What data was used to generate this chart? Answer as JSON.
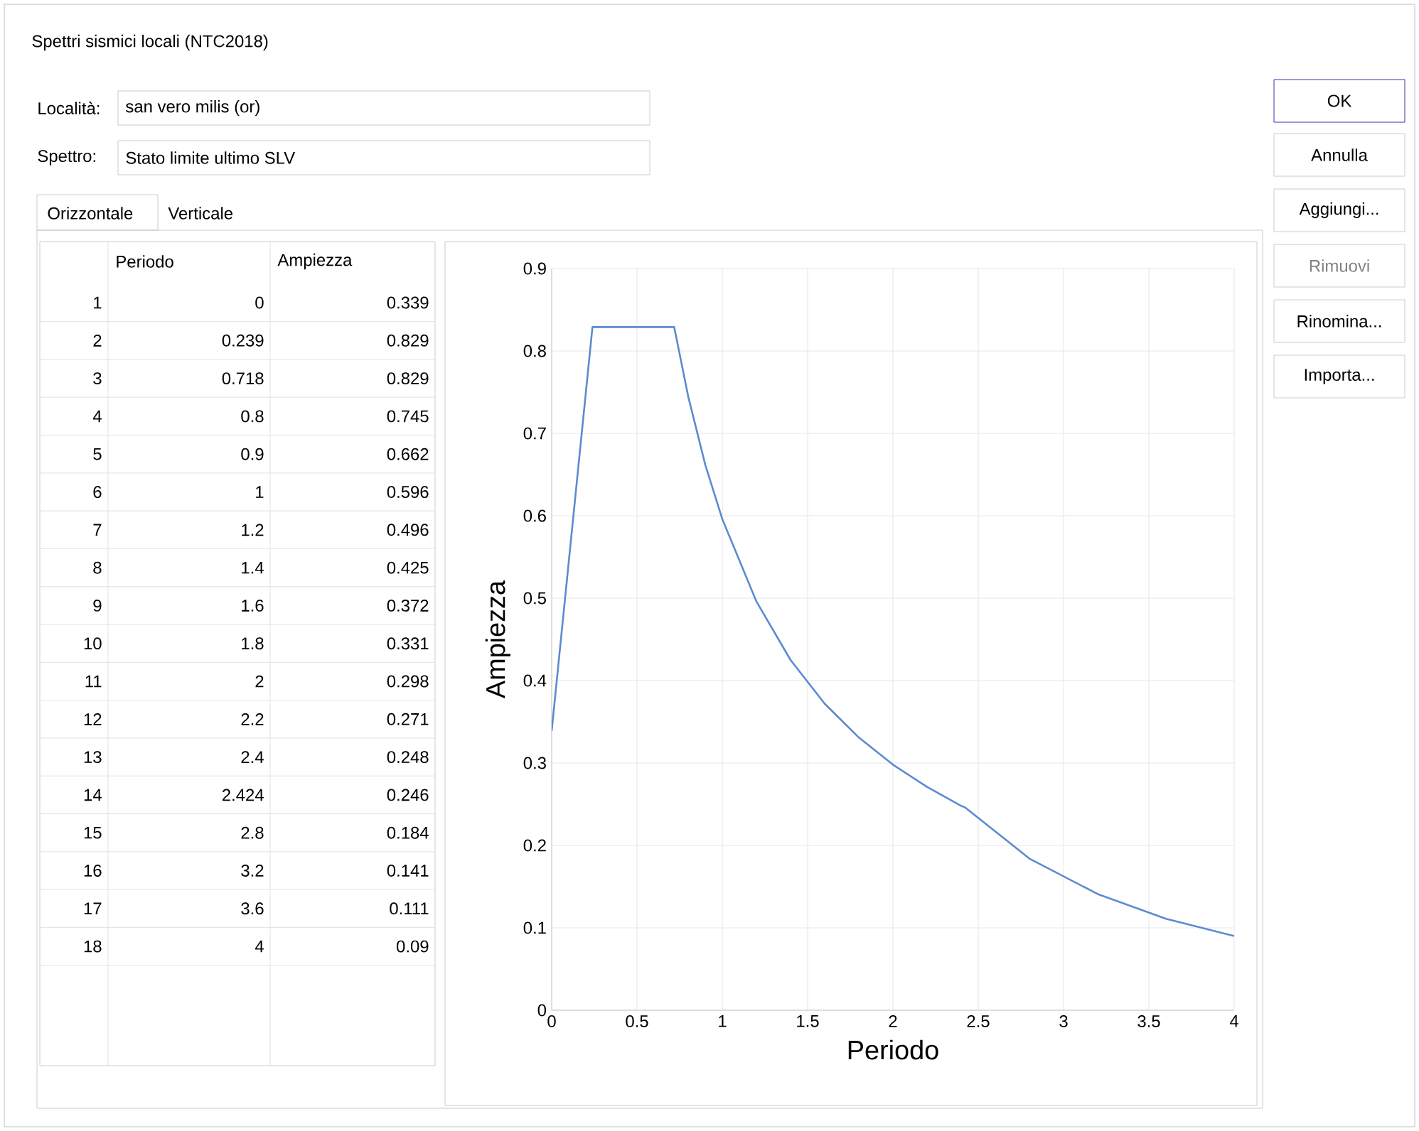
{
  "chart_data": {
    "type": "line",
    "title": "Spettri sismici locali (NTC2018)",
    "xlabel": "Periodo",
    "ylabel": "Ampiezza",
    "x": [
      0,
      0.239,
      0.718,
      0.8,
      0.9,
      1,
      1.2,
      1.4,
      1.6,
      1.8,
      2,
      2.2,
      2.4,
      2.424,
      2.8,
      3.2,
      3.6,
      4
    ],
    "series": [
      {
        "color": "#5b8bd0",
        "values": [
          0.339,
          0.829,
          0.829,
          0.745,
          0.662,
          0.596,
          0.496,
          0.425,
          0.372,
          0.331,
          0.298,
          0.271,
          0.248,
          0.246,
          0.184,
          0.141,
          0.111,
          0.09
        ]
      }
    ],
    "xlim": [
      0,
      4
    ],
    "ylim": [
      0,
      0.9
    ],
    "xticks": [
      0,
      0.5,
      1,
      1.5,
      2,
      2.5,
      3,
      3.5,
      4
    ],
    "yticks": [
      0,
      0.1,
      0.2,
      0.3,
      0.4,
      0.5,
      0.6,
      0.7,
      0.8,
      0.9
    ],
    "grid": true,
    "marker": "none",
    "line_style": "solid",
    "annotations": [
      "Località:",
      "san vero milis (or)",
      "Spettro:",
      "Stato limite ultimo SLV",
      "Orizzontale",
      "Verticale",
      "OK",
      "Annulla",
      "Aggiungi...",
      "Rimuovi",
      "Rinomina...",
      "Importa...",
      "1",
      "2",
      "3",
      "4",
      "5",
      "6",
      "7",
      "8",
      "9",
      "10",
      "11",
      "12",
      "13",
      "14",
      "15",
      "16",
      "17",
      "18",
      "0",
      "0.239",
      "0.718",
      "0.8",
      "0.9",
      "1",
      "1.2",
      "1.4",
      "1.6",
      "1.8",
      "2",
      "2.2",
      "2.4",
      "2.424",
      "2.8",
      "3.2",
      "3.6",
      "4",
      "0.339",
      "0.829",
      "0.829",
      "0.745",
      "0.662",
      "0.596",
      "0.496",
      "0.425",
      "0.372",
      "0.331",
      "0.298",
      "0.271",
      "0.248",
      "0.246",
      "0.184",
      "0.141",
      "0.111",
      "0.09"
    ]
  }
}
